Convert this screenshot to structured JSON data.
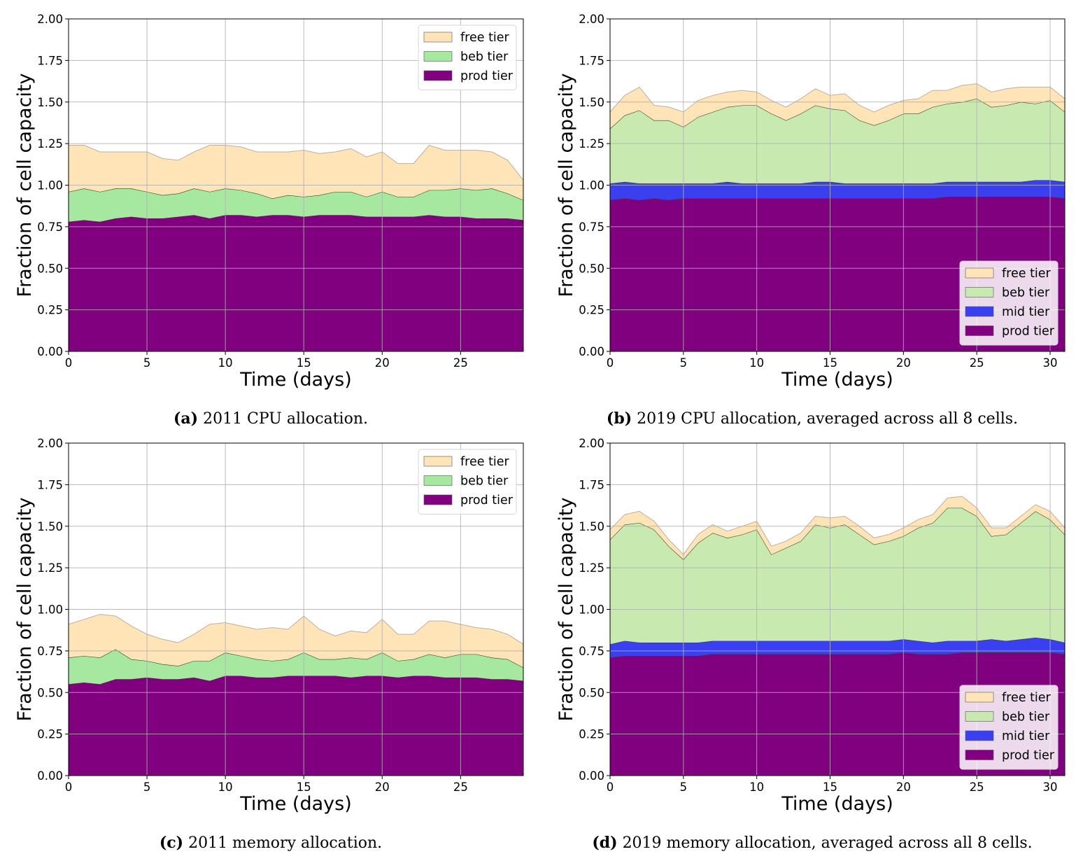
{
  "chart_data": [
    {
      "id": "a",
      "type": "area",
      "stacked": true,
      "caption_tag": "(a)",
      "caption_text": "2011 CPU allocation.",
      "xlabel": "Time (days)",
      "ylabel": "Fraction of cell capacity",
      "xlim": [
        0,
        29
      ],
      "ylim": [
        0,
        2
      ],
      "xticks": [
        0,
        5,
        10,
        15,
        20,
        25
      ],
      "yticks": [
        "0.00",
        "0.25",
        "0.50",
        "0.75",
        "1.00",
        "1.25",
        "1.50",
        "1.75",
        "2.00"
      ],
      "grid": true,
      "legend_position": "top-right",
      "legend": [
        "free tier",
        "beb tier",
        "prod tier"
      ],
      "x": [
        0,
        1,
        2,
        3,
        4,
        5,
        6,
        7,
        8,
        9,
        10,
        11,
        12,
        13,
        14,
        15,
        16,
        17,
        18,
        19,
        20,
        21,
        22,
        23,
        24,
        25,
        26,
        27,
        28,
        29
      ],
      "series": [
        {
          "name": "prod tier",
          "color": "#800080",
          "values": [
            0.78,
            0.79,
            0.78,
            0.8,
            0.81,
            0.8,
            0.8,
            0.81,
            0.82,
            0.8,
            0.82,
            0.82,
            0.81,
            0.82,
            0.82,
            0.81,
            0.82,
            0.82,
            0.82,
            0.81,
            0.81,
            0.81,
            0.81,
            0.82,
            0.81,
            0.81,
            0.8,
            0.8,
            0.8,
            0.79
          ]
        },
        {
          "name": "beb tier",
          "color": "#a6e8a0",
          "values": [
            0.18,
            0.19,
            0.18,
            0.18,
            0.17,
            0.16,
            0.14,
            0.14,
            0.16,
            0.16,
            0.16,
            0.15,
            0.14,
            0.1,
            0.12,
            0.12,
            0.12,
            0.14,
            0.14,
            0.12,
            0.15,
            0.12,
            0.12,
            0.15,
            0.16,
            0.17,
            0.17,
            0.18,
            0.15,
            0.12
          ]
        },
        {
          "name": "free tier",
          "color": "#ffe4b8",
          "values": [
            0.28,
            0.26,
            0.24,
            0.22,
            0.22,
            0.24,
            0.22,
            0.2,
            0.22,
            0.28,
            0.26,
            0.26,
            0.25,
            0.28,
            0.26,
            0.28,
            0.25,
            0.24,
            0.26,
            0.24,
            0.24,
            0.2,
            0.2,
            0.27,
            0.24,
            0.23,
            0.24,
            0.22,
            0.2,
            0.12
          ]
        }
      ]
    },
    {
      "id": "b",
      "type": "area",
      "stacked": true,
      "caption_tag": "(b)",
      "caption_text": "2019 CPU allocation, averaged across all 8 cells.",
      "xlabel": "Time (days)",
      "ylabel": "Fraction of cell capacity",
      "xlim": [
        0,
        31
      ],
      "ylim": [
        0,
        2
      ],
      "xticks": [
        0,
        5,
        10,
        15,
        20,
        25,
        30
      ],
      "yticks": [
        "0.00",
        "0.25",
        "0.50",
        "0.75",
        "1.00",
        "1.25",
        "1.50",
        "1.75",
        "2.00"
      ],
      "grid": true,
      "legend_position": "bottom-right",
      "legend": [
        "free tier",
        "beb tier",
        "mid tier",
        "prod tier"
      ],
      "x": [
        0,
        1,
        2,
        3,
        4,
        5,
        6,
        7,
        8,
        9,
        10,
        11,
        12,
        13,
        14,
        15,
        16,
        17,
        18,
        19,
        20,
        21,
        22,
        23,
        24,
        25,
        26,
        27,
        28,
        29,
        30,
        31
      ],
      "series": [
        {
          "name": "prod tier",
          "color": "#800080",
          "values": [
            0.91,
            0.92,
            0.91,
            0.92,
            0.91,
            0.92,
            0.92,
            0.92,
            0.92,
            0.92,
            0.92,
            0.92,
            0.92,
            0.92,
            0.92,
            0.92,
            0.92,
            0.92,
            0.92,
            0.92,
            0.92,
            0.92,
            0.92,
            0.93,
            0.93,
            0.93,
            0.93,
            0.93,
            0.93,
            0.93,
            0.93,
            0.92
          ]
        },
        {
          "name": "mid tier",
          "color": "#3a3ff0",
          "values": [
            0.1,
            0.1,
            0.1,
            0.09,
            0.1,
            0.09,
            0.09,
            0.09,
            0.1,
            0.09,
            0.09,
            0.09,
            0.09,
            0.09,
            0.1,
            0.1,
            0.09,
            0.09,
            0.09,
            0.09,
            0.09,
            0.09,
            0.09,
            0.09,
            0.09,
            0.09,
            0.09,
            0.09,
            0.09,
            0.1,
            0.1,
            0.1
          ]
        },
        {
          "name": "beb tier",
          "color": "#c8eab0",
          "values": [
            0.33,
            0.4,
            0.44,
            0.38,
            0.38,
            0.34,
            0.4,
            0.43,
            0.45,
            0.47,
            0.47,
            0.42,
            0.38,
            0.42,
            0.46,
            0.44,
            0.44,
            0.38,
            0.35,
            0.38,
            0.42,
            0.42,
            0.46,
            0.47,
            0.48,
            0.5,
            0.45,
            0.46,
            0.48,
            0.46,
            0.48,
            0.42
          ]
        },
        {
          "name": "free tier",
          "color": "#ffe4b8",
          "values": [
            0.1,
            0.12,
            0.14,
            0.09,
            0.08,
            0.09,
            0.1,
            0.1,
            0.09,
            0.09,
            0.08,
            0.08,
            0.08,
            0.09,
            0.1,
            0.08,
            0.1,
            0.09,
            0.08,
            0.09,
            0.08,
            0.09,
            0.1,
            0.08,
            0.1,
            0.09,
            0.09,
            0.1,
            0.09,
            0.1,
            0.08,
            0.08
          ]
        }
      ]
    },
    {
      "id": "c",
      "type": "area",
      "stacked": true,
      "caption_tag": "(c)",
      "caption_text": "2011 memory allocation.",
      "xlabel": "Time (days)",
      "ylabel": "Fraction of cell capacity",
      "xlim": [
        0,
        29
      ],
      "ylim": [
        0,
        2
      ],
      "xticks": [
        0,
        5,
        10,
        15,
        20,
        25
      ],
      "yticks": [
        "0.00",
        "0.25",
        "0.50",
        "0.75",
        "1.00",
        "1.25",
        "1.50",
        "1.75",
        "2.00"
      ],
      "grid": true,
      "legend_position": "top-right",
      "legend": [
        "free tier",
        "beb tier",
        "prod tier"
      ],
      "x": [
        0,
        1,
        2,
        3,
        4,
        5,
        6,
        7,
        8,
        9,
        10,
        11,
        12,
        13,
        14,
        15,
        16,
        17,
        18,
        19,
        20,
        21,
        22,
        23,
        24,
        25,
        26,
        27,
        28,
        29
      ],
      "series": [
        {
          "name": "prod tier",
          "color": "#800080",
          "values": [
            0.55,
            0.56,
            0.55,
            0.58,
            0.58,
            0.59,
            0.58,
            0.58,
            0.59,
            0.57,
            0.6,
            0.6,
            0.59,
            0.59,
            0.6,
            0.6,
            0.6,
            0.6,
            0.59,
            0.6,
            0.6,
            0.59,
            0.6,
            0.6,
            0.59,
            0.59,
            0.59,
            0.58,
            0.58,
            0.57
          ]
        },
        {
          "name": "beb tier",
          "color": "#a6e8a0",
          "values": [
            0.16,
            0.16,
            0.16,
            0.18,
            0.12,
            0.1,
            0.09,
            0.08,
            0.1,
            0.12,
            0.14,
            0.12,
            0.11,
            0.1,
            0.1,
            0.14,
            0.1,
            0.1,
            0.12,
            0.1,
            0.14,
            0.1,
            0.1,
            0.13,
            0.12,
            0.14,
            0.14,
            0.13,
            0.12,
            0.08
          ]
        },
        {
          "name": "free tier",
          "color": "#ffe4b8",
          "values": [
            0.2,
            0.22,
            0.26,
            0.2,
            0.2,
            0.16,
            0.15,
            0.14,
            0.16,
            0.22,
            0.18,
            0.18,
            0.18,
            0.2,
            0.18,
            0.22,
            0.18,
            0.14,
            0.16,
            0.16,
            0.2,
            0.16,
            0.15,
            0.2,
            0.22,
            0.18,
            0.16,
            0.17,
            0.15,
            0.14
          ]
        }
      ]
    },
    {
      "id": "d",
      "type": "area",
      "stacked": true,
      "caption_tag": "(d)",
      "caption_text": "2019 memory allocation, averaged across all 8 cells.",
      "xlabel": "Time (days)",
      "ylabel": "Fraction of cell capacity",
      "xlim": [
        0,
        31
      ],
      "ylim": [
        0,
        2
      ],
      "xticks": [
        0,
        5,
        10,
        15,
        20,
        25,
        30
      ],
      "yticks": [
        "0.00",
        "0.25",
        "0.50",
        "0.75",
        "1.00",
        "1.25",
        "1.50",
        "1.75",
        "2.00"
      ],
      "grid": true,
      "legend_position": "bottom-right",
      "legend": [
        "free tier",
        "beb tier",
        "mid tier",
        "prod tier"
      ],
      "x": [
        0,
        1,
        2,
        3,
        4,
        5,
        6,
        7,
        8,
        9,
        10,
        11,
        12,
        13,
        14,
        15,
        16,
        17,
        18,
        19,
        20,
        21,
        22,
        23,
        24,
        25,
        26,
        27,
        28,
        29,
        30,
        31
      ],
      "series": [
        {
          "name": "prod tier",
          "color": "#800080",
          "values": [
            0.71,
            0.72,
            0.72,
            0.72,
            0.72,
            0.72,
            0.72,
            0.73,
            0.73,
            0.73,
            0.73,
            0.73,
            0.73,
            0.73,
            0.73,
            0.73,
            0.73,
            0.73,
            0.73,
            0.73,
            0.74,
            0.73,
            0.73,
            0.73,
            0.74,
            0.74,
            0.74,
            0.74,
            0.74,
            0.74,
            0.74,
            0.73
          ]
        },
        {
          "name": "mid tier",
          "color": "#3a3ff0",
          "values": [
            0.08,
            0.09,
            0.08,
            0.08,
            0.08,
            0.08,
            0.08,
            0.08,
            0.08,
            0.08,
            0.08,
            0.08,
            0.08,
            0.08,
            0.08,
            0.08,
            0.08,
            0.08,
            0.08,
            0.08,
            0.08,
            0.08,
            0.07,
            0.08,
            0.07,
            0.07,
            0.08,
            0.07,
            0.08,
            0.09,
            0.08,
            0.07
          ]
        },
        {
          "name": "beb tier",
          "color": "#c8eab0",
          "values": [
            0.63,
            0.7,
            0.72,
            0.68,
            0.58,
            0.5,
            0.6,
            0.65,
            0.62,
            0.64,
            0.67,
            0.52,
            0.56,
            0.6,
            0.7,
            0.68,
            0.7,
            0.64,
            0.58,
            0.6,
            0.62,
            0.68,
            0.72,
            0.8,
            0.8,
            0.75,
            0.62,
            0.64,
            0.7,
            0.76,
            0.72,
            0.65
          ]
        },
        {
          "name": "free tier",
          "color": "#ffe4b8",
          "values": [
            0.06,
            0.06,
            0.07,
            0.05,
            0.04,
            0.03,
            0.05,
            0.05,
            0.04,
            0.05,
            0.05,
            0.05,
            0.04,
            0.05,
            0.05,
            0.06,
            0.05,
            0.05,
            0.04,
            0.04,
            0.05,
            0.05,
            0.05,
            0.06,
            0.07,
            0.05,
            0.05,
            0.04,
            0.04,
            0.04,
            0.05,
            0.04
          ]
        }
      ]
    }
  ]
}
